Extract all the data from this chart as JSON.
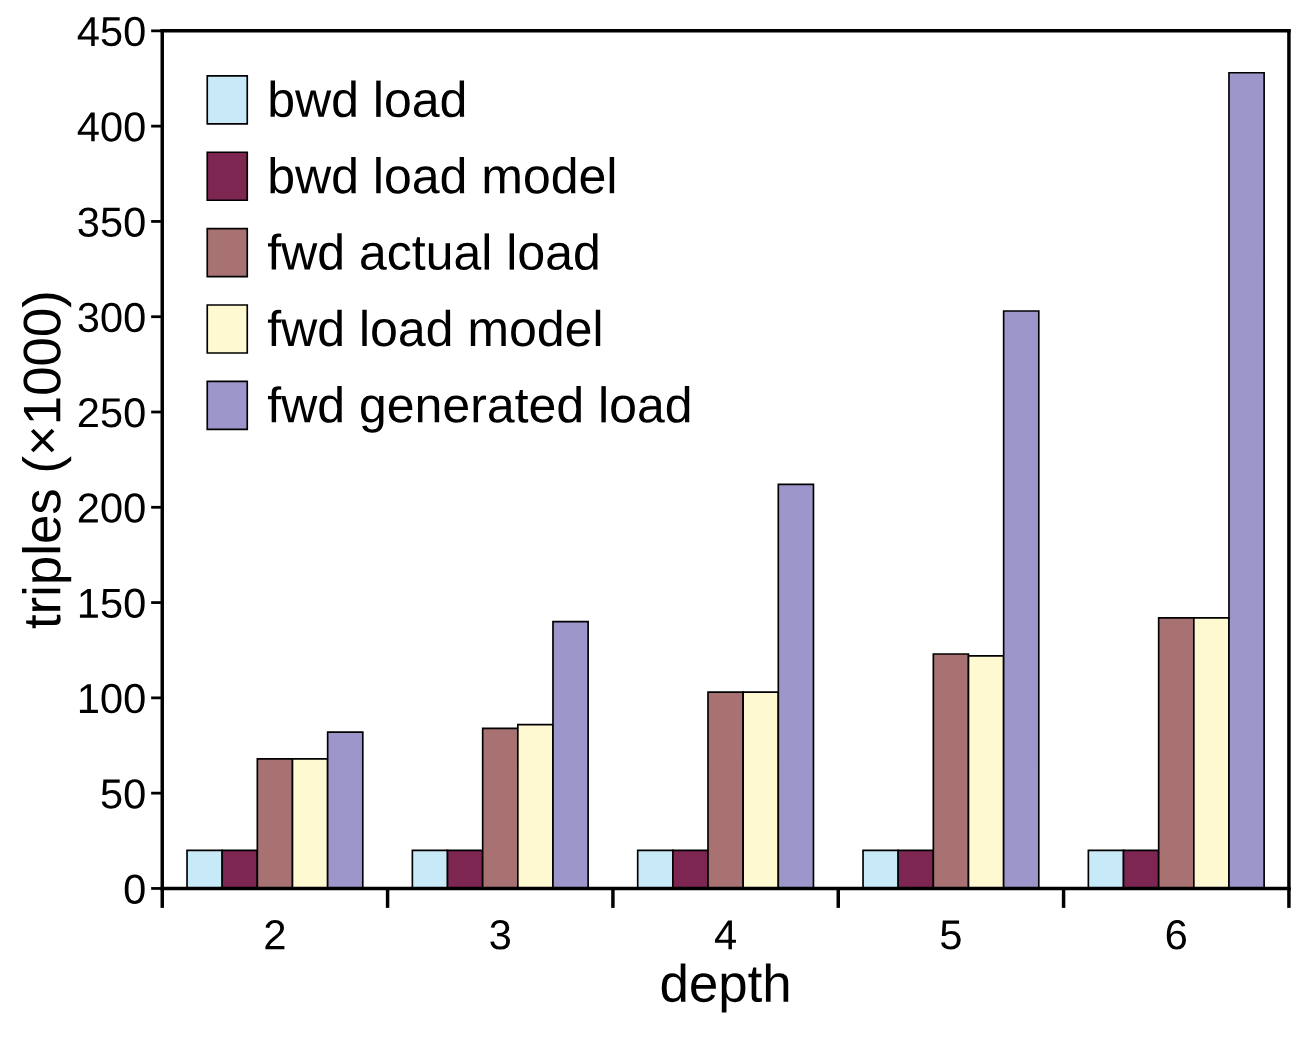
{
  "chart_data": {
    "type": "bar",
    "xlabel": "depth",
    "ylabel": "triples (×1000)",
    "categories": [
      "2",
      "3",
      "4",
      "5",
      "6"
    ],
    "series": [
      {
        "name": "bwd load",
        "color": "#c8eaf8",
        "values": [
          20,
          20,
          20,
          20,
          20
        ]
      },
      {
        "name": "bwd load model",
        "color": "#7d2652",
        "values": [
          20,
          20,
          20,
          20,
          20
        ]
      },
      {
        "name": "fwd actual load",
        "color": "#a87272",
        "values": [
          68,
          84,
          103,
          123,
          142
        ]
      },
      {
        "name": "fwd load model",
        "color": "#fff9d2",
        "values": [
          68,
          86,
          103,
          122,
          142
        ]
      },
      {
        "name": "fwd generated load",
        "color": "#9d96ca",
        "values": [
          82,
          140,
          212,
          303,
          428
        ]
      }
    ],
    "ylim": [
      0,
      450
    ],
    "yticks": [
      0,
      50,
      100,
      150,
      200,
      250,
      300,
      350,
      400,
      450
    ],
    "grid": false,
    "legend": "top left"
  }
}
